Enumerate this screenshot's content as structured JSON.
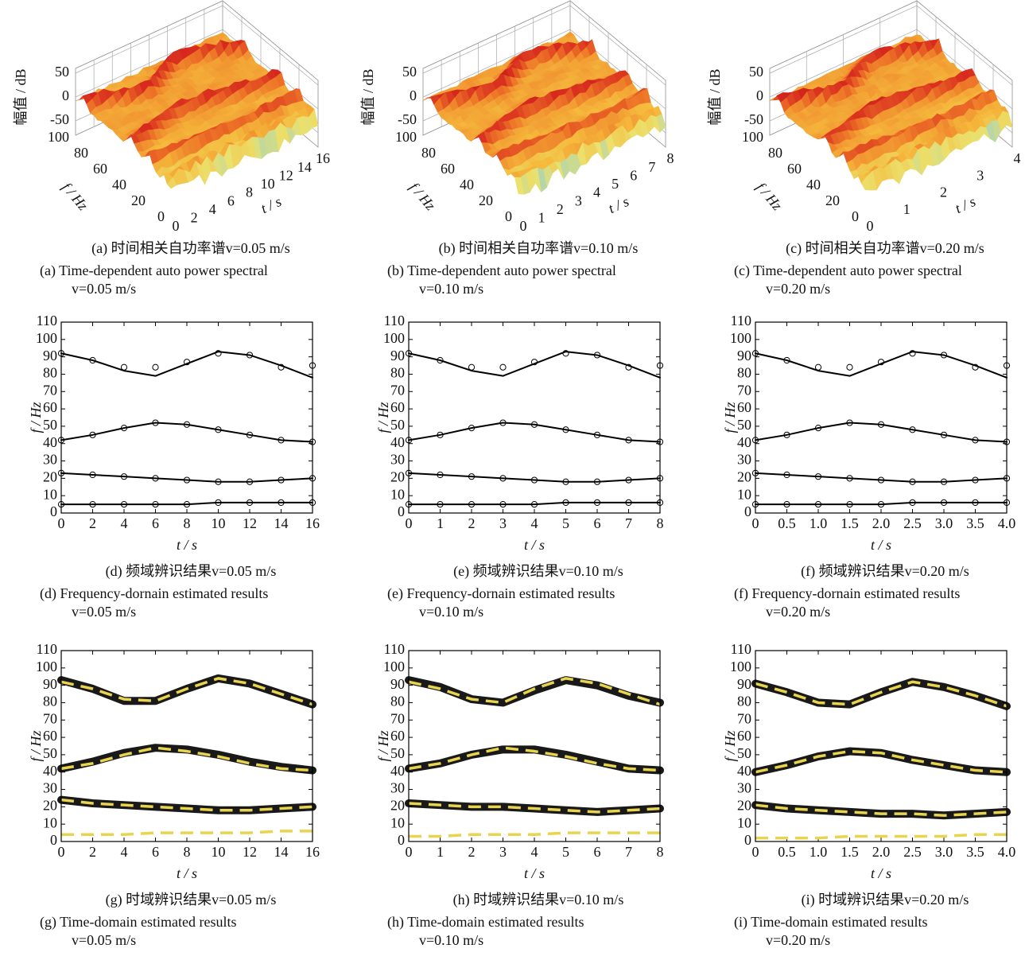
{
  "chart_data": [
    {
      "type": "surface3d",
      "zlabel": "幅值 / dB",
      "ylabel": "f / Hz",
      "xlabel": "t / s",
      "zlim": [
        -80,
        60
      ],
      "zticks": [
        -50,
        0,
        50
      ],
      "ylim": [
        0,
        100
      ],
      "yticks": [
        0,
        20,
        40,
        60,
        80,
        100
      ],
      "xlim": [
        0,
        16
      ],
      "xticks": [
        0,
        2,
        4,
        6,
        8,
        10,
        12,
        14,
        16
      ],
      "caption_cn": "(a)  时间相关自功率谱v=0.05 m/s",
      "caption_en": [
        "(a)  Time-dependent auto power spectral",
        "v=0.05 m/s"
      ]
    },
    {
      "type": "surface3d",
      "zlabel": "幅值 / dB",
      "ylabel": "f / Hz",
      "xlabel": "t / s",
      "zlim": [
        -80,
        60
      ],
      "zticks": [
        -50,
        0,
        50
      ],
      "ylim": [
        0,
        100
      ],
      "yticks": [
        0,
        20,
        40,
        60,
        80,
        100
      ],
      "xlim": [
        0,
        8
      ],
      "xticks": [
        0,
        1,
        2,
        3,
        4,
        5,
        6,
        7,
        8
      ],
      "caption_cn": "(b)  时间相关自功率谱v=0.10 m/s",
      "caption_en": [
        "(b)  Time-dependent auto power spectral",
        "v=0.10 m/s"
      ]
    },
    {
      "type": "surface3d",
      "zlabel": "幅值 / dB",
      "ylabel": "f / Hz",
      "xlabel": "t / s",
      "zlim": [
        -80,
        60
      ],
      "zticks": [
        -50,
        0,
        50
      ],
      "ylim": [
        0,
        100
      ],
      "yticks": [
        0,
        20,
        40,
        60,
        80,
        100
      ],
      "xlim": [
        0,
        4
      ],
      "xticks": [
        0,
        1,
        2,
        3,
        4
      ],
      "caption_cn": "(c)  时间相关自功率谱v=0.20 m/s",
      "caption_en": [
        "(c)  Time-dependent auto power spectral",
        "v=0.20 m/s"
      ]
    },
    {
      "type": "line",
      "xlabel": "t / s",
      "ylabel": "f / Hz",
      "x": [
        0,
        2,
        4,
        6,
        8,
        10,
        12,
        14,
        16
      ],
      "xlim": [
        0,
        16
      ],
      "xticks": [
        0,
        2,
        4,
        6,
        8,
        10,
        12,
        14,
        16
      ],
      "ylim": [
        0,
        110
      ],
      "yticks": [
        0,
        10,
        20,
        30,
        40,
        50,
        60,
        70,
        80,
        90,
        100,
        110
      ],
      "series": [
        {
          "color": "#000000",
          "style": "solid",
          "values": [
            92,
            88,
            82,
            79,
            86,
            93,
            91,
            85,
            78
          ]
        },
        {
          "color": "#000000",
          "style": "circles",
          "values": [
            92,
            88,
            84,
            84,
            87,
            92,
            91,
            84,
            85
          ]
        },
        {
          "color": "#000000",
          "style": "solid",
          "values": [
            42,
            45,
            49,
            52,
            51,
            48,
            45,
            42,
            41
          ]
        },
        {
          "color": "#000000",
          "style": "circles",
          "values": [
            42,
            45,
            49,
            52,
            51,
            48,
            45,
            42,
            41
          ]
        },
        {
          "color": "#000000",
          "style": "solid",
          "values": [
            23,
            22,
            21,
            20,
            19,
            18,
            18,
            19,
            20
          ]
        },
        {
          "color": "#000000",
          "style": "circles",
          "values": [
            23,
            22,
            21,
            20,
            19,
            18,
            18,
            19,
            20
          ]
        },
        {
          "color": "#000000",
          "style": "solid",
          "values": [
            5,
            5,
            5,
            5,
            5,
            6,
            6,
            6,
            6
          ]
        },
        {
          "color": "#000000",
          "style": "circles",
          "values": [
            5,
            5,
            5,
            5,
            5,
            6,
            6,
            6,
            6
          ]
        }
      ],
      "caption_cn": "(d)  频域辨识结果v=0.05 m/s",
      "caption_en": [
        "(d)  Frequency-dornain estimated results",
        "v=0.05 m/s"
      ]
    },
    {
      "type": "line",
      "xlabel": "t / s",
      "ylabel": "f / Hz",
      "x": [
        0,
        1,
        2,
        3,
        4,
        5,
        6,
        7,
        8
      ],
      "xlim": [
        0,
        8
      ],
      "xticks": [
        0,
        1,
        2,
        3,
        4,
        5,
        6,
        7,
        8
      ],
      "ylim": [
        0,
        110
      ],
      "yticks": [
        0,
        10,
        20,
        30,
        40,
        50,
        60,
        70,
        80,
        90,
        100,
        110
      ],
      "series": [
        {
          "color": "#000000",
          "style": "solid",
          "values": [
            92,
            88,
            82,
            79,
            86,
            93,
            91,
            85,
            78
          ]
        },
        {
          "color": "#000000",
          "style": "circles",
          "values": [
            92,
            88,
            84,
            84,
            87,
            92,
            91,
            84,
            85
          ]
        },
        {
          "color": "#000000",
          "style": "solid",
          "values": [
            42,
            45,
            49,
            52,
            51,
            48,
            45,
            42,
            41
          ]
        },
        {
          "color": "#000000",
          "style": "circles",
          "values": [
            42,
            45,
            49,
            52,
            51,
            48,
            45,
            42,
            41
          ]
        },
        {
          "color": "#000000",
          "style": "solid",
          "values": [
            23,
            22,
            21,
            20,
            19,
            18,
            18,
            19,
            20
          ]
        },
        {
          "color": "#000000",
          "style": "circles",
          "values": [
            23,
            22,
            21,
            20,
            19,
            18,
            18,
            19,
            20
          ]
        },
        {
          "color": "#000000",
          "style": "solid",
          "values": [
            5,
            5,
            5,
            5,
            5,
            6,
            6,
            6,
            6
          ]
        },
        {
          "color": "#000000",
          "style": "circles",
          "values": [
            5,
            5,
            5,
            5,
            5,
            6,
            6,
            6,
            6
          ]
        }
      ],
      "caption_cn": "(e)  频域辨识结果v=0.10 m/s",
      "caption_en": [
        "(e)  Frequency-dornain estimated results",
        "v=0.10 m/s"
      ]
    },
    {
      "type": "line",
      "xlabel": "t / s",
      "ylabel": "f / Hz",
      "x": [
        0,
        0.5,
        1,
        1.5,
        2,
        2.5,
        3,
        3.5,
        4
      ],
      "xlim": [
        0,
        4
      ],
      "xticks": [
        0,
        0.5,
        {
          "value": 1,
          "label": "1.0"
        },
        1.5,
        {
          "value": 2,
          "label": "2.0"
        },
        2.5,
        {
          "value": 3,
          "label": "3.0"
        },
        3.5,
        {
          "value": 4,
          "label": "4.0"
        }
      ],
      "ylim": [
        0,
        110
      ],
      "yticks": [
        0,
        10,
        20,
        30,
        40,
        50,
        60,
        70,
        80,
        90,
        100,
        110
      ],
      "series": [
        {
          "color": "#000000",
          "style": "solid",
          "values": [
            92,
            88,
            82,
            79,
            86,
            93,
            91,
            85,
            78
          ]
        },
        {
          "color": "#000000",
          "style": "circles",
          "values": [
            92,
            88,
            84,
            84,
            87,
            92,
            91,
            84,
            85
          ]
        },
        {
          "color": "#000000",
          "style": "solid",
          "values": [
            42,
            45,
            49,
            52,
            51,
            48,
            45,
            42,
            41
          ]
        },
        {
          "color": "#000000",
          "style": "circles",
          "values": [
            42,
            45,
            49,
            52,
            51,
            48,
            45,
            42,
            41
          ]
        },
        {
          "color": "#000000",
          "style": "solid",
          "values": [
            23,
            22,
            21,
            20,
            19,
            18,
            18,
            19,
            20
          ]
        },
        {
          "color": "#000000",
          "style": "circles",
          "values": [
            23,
            22,
            21,
            20,
            19,
            18,
            18,
            19,
            20
          ]
        },
        {
          "color": "#000000",
          "style": "solid",
          "values": [
            5,
            5,
            5,
            5,
            5,
            6,
            6,
            6,
            6
          ]
        },
        {
          "color": "#000000",
          "style": "circles",
          "values": [
            5,
            5,
            5,
            5,
            5,
            6,
            6,
            6,
            6
          ]
        }
      ],
      "caption_cn": "(f)  频域辨识结果v=0.20 m/s",
      "caption_en": [
        "(f)  Frequency-dornain estimated results",
        "v=0.20 m/s"
      ]
    },
    {
      "type": "line",
      "xlabel": "t / s",
      "ylabel": "f / Hz",
      "x": [
        0,
        2,
        4,
        6,
        8,
        10,
        12,
        14,
        16
      ],
      "xlim": [
        0,
        16
      ],
      "xticks": [
        0,
        2,
        4,
        6,
        8,
        10,
        12,
        14,
        16
      ],
      "ylim": [
        0,
        110
      ],
      "yticks": [
        0,
        10,
        20,
        30,
        40,
        50,
        60,
        70,
        80,
        90,
        100,
        110
      ],
      "series": [
        {
          "color": "#000000",
          "style": "band",
          "values": [
            93,
            88,
            81,
            81,
            88,
            94,
            91,
            85,
            79
          ]
        },
        {
          "color": "#000000",
          "style": "band",
          "values": [
            42,
            46,
            51,
            54,
            53,
            50,
            46,
            43,
            41
          ]
        },
        {
          "color": "#000000",
          "style": "band",
          "values": [
            24,
            22,
            21,
            20,
            19,
            18,
            18,
            19,
            20
          ]
        },
        {
          "color": "#e8d44d",
          "style": "dashed",
          "values": [
            92,
            88,
            82,
            81,
            88,
            94,
            91,
            85,
            79
          ]
        },
        {
          "color": "#e8d44d",
          "style": "dashed",
          "values": [
            42,
            45,
            50,
            54,
            52,
            49,
            45,
            42,
            41
          ]
        },
        {
          "color": "#e8d44d",
          "style": "dashed",
          "values": [
            24,
            22,
            21,
            20,
            19,
            18,
            18,
            19,
            20
          ]
        },
        {
          "color": "#e8d44d",
          "style": "dashed",
          "values": [
            4,
            4,
            4,
            5,
            5,
            5,
            5,
            6,
            6
          ]
        }
      ],
      "caption_cn": "(g)  时域辨识结果v=0.05 m/s",
      "caption_en": [
        "(g)  Time-domain estimated results",
        "v=0.05 m/s"
      ]
    },
    {
      "type": "line",
      "xlabel": "t / s",
      "ylabel": "f / Hz",
      "x": [
        0,
        1,
        2,
        3,
        4,
        5,
        6,
        7,
        8
      ],
      "xlim": [
        0,
        8
      ],
      "xticks": [
        0,
        1,
        2,
        3,
        4,
        5,
        6,
        7,
        8
      ],
      "ylim": [
        0,
        110
      ],
      "yticks": [
        0,
        10,
        20,
        30,
        40,
        50,
        60,
        70,
        80,
        90,
        100,
        110
      ],
      "series": [
        {
          "color": "#000000",
          "style": "band",
          "values": [
            93,
            89,
            82,
            80,
            87,
            93,
            90,
            84,
            80
          ]
        },
        {
          "color": "#000000",
          "style": "band",
          "values": [
            42,
            45,
            50,
            53,
            53,
            50,
            46,
            42,
            41
          ]
        },
        {
          "color": "#000000",
          "style": "band",
          "values": [
            22,
            21,
            20,
            20,
            19,
            18,
            17,
            18,
            19
          ]
        },
        {
          "color": "#e8d44d",
          "style": "dashed",
          "values": [
            92,
            88,
            82,
            80,
            88,
            94,
            91,
            85,
            79
          ]
        },
        {
          "color": "#e8d44d",
          "style": "dashed",
          "values": [
            42,
            45,
            50,
            54,
            52,
            49,
            45,
            42,
            41
          ]
        },
        {
          "color": "#e8d44d",
          "style": "dashed",
          "values": [
            22,
            21,
            20,
            20,
            19,
            18,
            17,
            18,
            19
          ]
        },
        {
          "color": "#e8d44d",
          "style": "dashed",
          "values": [
            3,
            3,
            4,
            4,
            4,
            5,
            5,
            5,
            5
          ]
        }
      ],
      "caption_cn": "(h)  时域辨识结果v=0.10 m/s",
      "caption_en": [
        "(h)  Time-domain estimated results",
        "v=0.10 m/s"
      ]
    },
    {
      "type": "line",
      "xlabel": "t / s",
      "ylabel": "f / Hz",
      "x": [
        0,
        0.5,
        1,
        1.5,
        2,
        2.5,
        3,
        3.5,
        4
      ],
      "xlim": [
        0,
        4
      ],
      "xticks": [
        0,
        0.5,
        {
          "value": 1,
          "label": "1.0"
        },
        1.5,
        {
          "value": 2,
          "label": "2.0"
        },
        2.5,
        {
          "value": 3,
          "label": "3.0"
        },
        3.5,
        {
          "value": 4,
          "label": "4.0"
        }
      ],
      "ylim": [
        0,
        110
      ],
      "yticks": [
        0,
        10,
        20,
        30,
        40,
        50,
        60,
        70,
        80,
        90,
        100,
        110
      ],
      "series": [
        {
          "color": "#000000",
          "style": "band",
          "values": [
            91,
            86,
            80,
            79,
            86,
            92,
            89,
            84,
            78
          ]
        },
        {
          "color": "#000000",
          "style": "band",
          "values": [
            40,
            44,
            49,
            52,
            51,
            47,
            44,
            41,
            40
          ]
        },
        {
          "color": "#000000",
          "style": "band",
          "values": [
            21,
            19,
            18,
            17,
            16,
            16,
            15,
            16,
            17
          ]
        },
        {
          "color": "#e8d44d",
          "style": "dashed",
          "values": [
            91,
            86,
            80,
            79,
            86,
            92,
            89,
            84,
            78
          ]
        },
        {
          "color": "#e8d44d",
          "style": "dashed",
          "values": [
            40,
            44,
            49,
            52,
            51,
            47,
            44,
            41,
            40
          ]
        },
        {
          "color": "#e8d44d",
          "style": "dashed",
          "values": [
            21,
            19,
            18,
            17,
            16,
            16,
            15,
            16,
            17
          ]
        },
        {
          "color": "#e8d44d",
          "style": "dashed",
          "values": [
            2,
            2,
            2,
            3,
            3,
            3,
            3,
            4,
            4
          ]
        }
      ],
      "caption_cn": "(i)  时域辨识结果v=0.20 m/s",
      "caption_en": [
        "(i)  Time-domain estimated results",
        "v=0.20 m/s"
      ]
    }
  ]
}
